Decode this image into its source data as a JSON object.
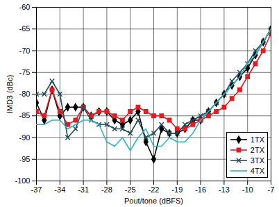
{
  "chart_data": {
    "type": "line",
    "x_label": "Pout/tone (dBFS)",
    "y_label": "IMD3 (dBc)",
    "x": [
      -37,
      -36,
      -35,
      -34,
      -33,
      -32,
      -31,
      -30,
      -29,
      -28,
      -27,
      -26,
      -25,
      -24,
      -23,
      -22,
      -21,
      -20,
      -19,
      -18,
      -17,
      -16,
      -15,
      -14,
      -13,
      -12,
      -11,
      -10,
      -9,
      -8,
      -7
    ],
    "series": [
      {
        "name": "1TX",
        "color": "#000000",
        "marker": "diamond",
        "values": [
          -82,
          -86,
          -79,
          -85,
          -83,
          -83,
          -83,
          -85,
          -84,
          -84,
          -86,
          -87,
          -86,
          -84,
          -91,
          -95,
          -88,
          -89,
          -89,
          -88,
          -86,
          -86,
          -84,
          -82,
          -80,
          -78,
          -76,
          -74,
          -71,
          -68,
          -65
        ]
      },
      {
        "name": "2TX",
        "color": "#e8191f",
        "marker": "square",
        "values": [
          -84,
          -85,
          -79,
          -84,
          -87,
          -86,
          -83,
          -85,
          -84,
          -84,
          -85,
          -86,
          -84,
          -83,
          -84,
          -85,
          -85,
          -86,
          -88,
          -88,
          -87,
          -86,
          -85,
          -84,
          -83,
          -81,
          -79,
          -76,
          -73,
          -70,
          -66
        ]
      },
      {
        "name": "3TX",
        "color": "#1f4e5e",
        "marker": "x",
        "values": [
          -80,
          -80,
          -77,
          -80,
          -90,
          -88,
          -83,
          -86,
          -87,
          -87,
          -88,
          -88,
          -89,
          -86,
          -90,
          -89,
          -87,
          -89,
          -89,
          -87,
          -86,
          -85,
          -84,
          -82,
          -80,
          -77,
          -75,
          -73,
          -70,
          -68,
          -65
        ]
      },
      {
        "name": "4TX",
        "color": "#2ab6c8",
        "marker": "none",
        "values": [
          -87,
          -87,
          -86,
          -86,
          -88,
          -87,
          -86,
          -86,
          -87,
          -91,
          -92,
          -90,
          -93,
          -90,
          -88,
          -92,
          -92,
          -90,
          -91,
          -91,
          -89,
          -86,
          -84,
          -82,
          -80,
          -78,
          -76,
          -73,
          -71,
          -68,
          -65
        ]
      }
    ],
    "xlim": [
      -37,
      -7
    ],
    "xticks": [
      -37,
      -34,
      -31,
      -28,
      -25,
      -22,
      -19,
      -16,
      -13,
      -10,
      -7
    ],
    "ylim": [
      -100,
      -60
    ],
    "yticks": [
      -100,
      -95,
      -90,
      -85,
      -80,
      -75,
      -70,
      -65,
      -60
    ],
    "grid": true,
    "legend": "lower right"
  }
}
